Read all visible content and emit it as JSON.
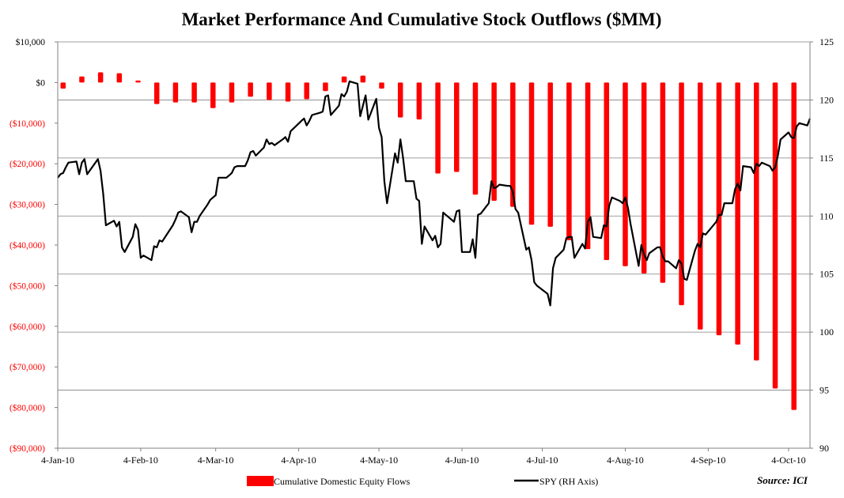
{
  "chart_data": {
    "type": "bar+line",
    "title": "Market Performance And Cumulative Stock Outflows ($MM)",
    "source": "Source: ICI",
    "left_axis": {
      "ylim": [
        -90000,
        10000
      ],
      "ticks": [
        10000,
        0,
        -10000,
        -20000,
        -30000,
        -40000,
        -50000,
        -60000,
        -70000,
        -80000,
        -90000
      ],
      "tick_labels": [
        "$10,000",
        "$0",
        "($10,000)",
        "($20,000)",
        "($30,000)",
        "($40,000)",
        "($50,000)",
        "($60,000)",
        "($70,000)",
        "($80,000)",
        "($90,000)"
      ],
      "positive_color": "#000000",
      "negative_color": "#ff0000"
    },
    "right_axis": {
      "ylim": [
        90,
        125
      ],
      "ticks": [
        125,
        120,
        115,
        110,
        105,
        100,
        95,
        90
      ],
      "tick_labels": [
        "125",
        "120",
        "115",
        "110",
        "105",
        "100",
        "95",
        "90"
      ]
    },
    "x_axis": {
      "start": "2010-01-04",
      "end": "2010-10-12",
      "ticks": [
        "2010-01-04",
        "2010-02-04",
        "2010-03-04",
        "2010-04-04",
        "2010-05-04",
        "2010-06-04",
        "2010-07-04",
        "2010-08-04",
        "2010-09-04",
        "2010-10-04"
      ],
      "tick_labels": [
        "4-Jan-10",
        "4-Feb-10",
        "4-Mar-10",
        "4-Apr-10",
        "4-May-10",
        "4-Jun-10",
        "4-Jul-10",
        "4-Aug-10",
        "4-Sep-10",
        "4-Oct-10"
      ]
    },
    "grid": true,
    "legend_position": "bottom",
    "series": [
      {
        "name": "Cumulative Domestic Equity Flows",
        "type": "bar",
        "axis": "left",
        "color": "#ff0000",
        "x": [
          "2010-01-06",
          "2010-01-13",
          "2010-01-20",
          "2010-01-27",
          "2010-02-03",
          "2010-02-10",
          "2010-02-17",
          "2010-02-24",
          "2010-03-03",
          "2010-03-10",
          "2010-03-17",
          "2010-03-24",
          "2010-03-31",
          "2010-04-07",
          "2010-04-14",
          "2010-04-21",
          "2010-04-28",
          "2010-05-05",
          "2010-05-12",
          "2010-05-19",
          "2010-05-26",
          "2010-06-02",
          "2010-06-09",
          "2010-06-16",
          "2010-06-23",
          "2010-06-30",
          "2010-07-07",
          "2010-07-14",
          "2010-07-21",
          "2010-07-28",
          "2010-08-04",
          "2010-08-11",
          "2010-08-18",
          "2010-08-25",
          "2010-09-01",
          "2010-09-08",
          "2010-09-15",
          "2010-09-22",
          "2010-09-29",
          "2010-10-06"
        ],
        "values": [
          -1500,
          1500,
          2500,
          2300,
          500,
          -5300,
          -4900,
          -4900,
          -6300,
          -4900,
          -3500,
          -4300,
          -4700,
          -4100,
          -2100,
          1500,
          1700,
          -1500,
          -8600,
          -9100,
          -22400,
          -22000,
          -27600,
          -29100,
          -30600,
          -35000,
          -35500,
          -38800,
          -41000,
          -43700,
          -45200,
          -47000,
          -49300,
          -54800,
          -60800,
          -62200,
          -64500,
          -68400,
          -75300,
          -80600
        ]
      },
      {
        "name": "SPY (RH Axis)",
        "type": "line",
        "axis": "right",
        "color": "#000000",
        "x": [
          "2010-01-04",
          "2010-01-05",
          "2010-01-06",
          "2010-01-07",
          "2010-01-08",
          "2010-01-11",
          "2010-01-12",
          "2010-01-13",
          "2010-01-14",
          "2010-01-15",
          "2010-01-19",
          "2010-01-20",
          "2010-01-21",
          "2010-01-22",
          "2010-01-25",
          "2010-01-26",
          "2010-01-27",
          "2010-01-28",
          "2010-01-29",
          "2010-02-01",
          "2010-02-02",
          "2010-02-03",
          "2010-02-04",
          "2010-02-05",
          "2010-02-08",
          "2010-02-09",
          "2010-02-10",
          "2010-02-11",
          "2010-02-12",
          "2010-02-16",
          "2010-02-17",
          "2010-02-18",
          "2010-02-19",
          "2010-02-22",
          "2010-02-23",
          "2010-02-24",
          "2010-02-25",
          "2010-02-26",
          "2010-03-01",
          "2010-03-02",
          "2010-03-03",
          "2010-03-04",
          "2010-03-05",
          "2010-03-08",
          "2010-03-09",
          "2010-03-10",
          "2010-03-11",
          "2010-03-12",
          "2010-03-15",
          "2010-03-16",
          "2010-03-17",
          "2010-03-18",
          "2010-03-19",
          "2010-03-22",
          "2010-03-23",
          "2010-03-24",
          "2010-03-25",
          "2010-03-26",
          "2010-03-29",
          "2010-03-30",
          "2010-03-31",
          "2010-04-01",
          "2010-04-05",
          "2010-04-06",
          "2010-04-07",
          "2010-04-08",
          "2010-04-09",
          "2010-04-12",
          "2010-04-13",
          "2010-04-14",
          "2010-04-15",
          "2010-04-16",
          "2010-04-19",
          "2010-04-20",
          "2010-04-21",
          "2010-04-22",
          "2010-04-23",
          "2010-04-26",
          "2010-04-27",
          "2010-04-28",
          "2010-04-29",
          "2010-04-30",
          "2010-05-03",
          "2010-05-04",
          "2010-05-05",
          "2010-05-06",
          "2010-05-07",
          "2010-05-10",
          "2010-05-11",
          "2010-05-12",
          "2010-05-13",
          "2010-05-14",
          "2010-05-17",
          "2010-05-18",
          "2010-05-19",
          "2010-05-20",
          "2010-05-21",
          "2010-05-24",
          "2010-05-25",
          "2010-05-26",
          "2010-05-27",
          "2010-05-28",
          "2010-06-01",
          "2010-06-02",
          "2010-06-03",
          "2010-06-04",
          "2010-06-07",
          "2010-06-08",
          "2010-06-09",
          "2010-06-10",
          "2010-06-11",
          "2010-06-14",
          "2010-06-15",
          "2010-06-16",
          "2010-06-17",
          "2010-06-18",
          "2010-06-21",
          "2010-06-22",
          "2010-06-23",
          "2010-06-24",
          "2010-06-25",
          "2010-06-28",
          "2010-06-29",
          "2010-06-30",
          "2010-07-01",
          "2010-07-02",
          "2010-07-06",
          "2010-07-07",
          "2010-07-08",
          "2010-07-09",
          "2010-07-12",
          "2010-07-13",
          "2010-07-14",
          "2010-07-15",
          "2010-07-16",
          "2010-07-19",
          "2010-07-20",
          "2010-07-21",
          "2010-07-22",
          "2010-07-23",
          "2010-07-26",
          "2010-07-27",
          "2010-07-28",
          "2010-07-29",
          "2010-07-30",
          "2010-08-02",
          "2010-08-03",
          "2010-08-04",
          "2010-08-05",
          "2010-08-06",
          "2010-08-09",
          "2010-08-10",
          "2010-08-11",
          "2010-08-12",
          "2010-08-13",
          "2010-08-16",
          "2010-08-17",
          "2010-08-18",
          "2010-08-19",
          "2010-08-20",
          "2010-08-23",
          "2010-08-24",
          "2010-08-25",
          "2010-08-26",
          "2010-08-27",
          "2010-08-30",
          "2010-08-31",
          "2010-09-01",
          "2010-09-02",
          "2010-09-03",
          "2010-09-07",
          "2010-09-08",
          "2010-09-09",
          "2010-09-10",
          "2010-09-13",
          "2010-09-14",
          "2010-09-15",
          "2010-09-16",
          "2010-09-17",
          "2010-09-20",
          "2010-09-21",
          "2010-09-22",
          "2010-09-23",
          "2010-09-24",
          "2010-09-27",
          "2010-09-28",
          "2010-09-29",
          "2010-09-30",
          "2010-10-01",
          "2010-10-04",
          "2010-10-05",
          "2010-10-06",
          "2010-10-07",
          "2010-10-08",
          "2010-10-11",
          "2010-10-12"
        ],
        "values": [
          113.3,
          113.6,
          113.7,
          114.2,
          114.6,
          114.7,
          113.6,
          114.6,
          114.9,
          113.6,
          114.9,
          113.9,
          111.9,
          109.2,
          109.6,
          109.1,
          109.5,
          107.3,
          106.9,
          108.2,
          109.3,
          108.8,
          106.4,
          106.6,
          106.2,
          107.4,
          107.3,
          107.9,
          107.8,
          109.2,
          109.7,
          110.3,
          110.4,
          109.9,
          108.6,
          109.5,
          109.5,
          110.0,
          111.0,
          111.4,
          111.6,
          111.8,
          113.3,
          113.3,
          113.5,
          113.7,
          114.2,
          114.3,
          114.3,
          114.8,
          115.5,
          115.6,
          115.2,
          115.9,
          116.6,
          116.2,
          116.3,
          116.1,
          116.6,
          116.8,
          116.4,
          117.3,
          118.2,
          118.4,
          117.8,
          118.2,
          118.7,
          118.9,
          119.0,
          120.3,
          120.4,
          118.7,
          119.5,
          120.5,
          120.3,
          120.7,
          121.6,
          121.4,
          118.6,
          119.5,
          120.4,
          118.3,
          120.1,
          117.6,
          116.8,
          113.0,
          111.1,
          115.4,
          114.6,
          116.6,
          115.0,
          113.0,
          113.0,
          111.5,
          111.3,
          107.6,
          109.1,
          107.9,
          108.3,
          107.3,
          107.6,
          110.3,
          109.5,
          110.4,
          110.5,
          106.9,
          106.9,
          108.0,
          106.4,
          110.1,
          110.2,
          111.1,
          113.0,
          112.4,
          112.5,
          112.7,
          112.6,
          112.6,
          112.1,
          110.6,
          110.3,
          107.1,
          107.3,
          106.2,
          104.3,
          104.0,
          103.3,
          102.3,
          105.5,
          106.4,
          107.1,
          108.1,
          108.2,
          108.2,
          106.4,
          107.6,
          107.2,
          109.5,
          109.9,
          108.2,
          108.1,
          109.2,
          109.1,
          110.9,
          111.6,
          111.3,
          111.1,
          111.6,
          110.7,
          109.3,
          105.7,
          107.5,
          106.7,
          106.2,
          106.8,
          107.3,
          107.3,
          106.5,
          106.1,
          106.1,
          105.5,
          106.2,
          105.9,
          104.6,
          104.5,
          107.0,
          107.6,
          107.3,
          108.5,
          108.4,
          109.5,
          110.1,
          110.1,
          111.1,
          111.1,
          112.3,
          112.8,
          112.2,
          114.3,
          114.2,
          113.7,
          114.5,
          114.3,
          114.6,
          114.3,
          113.9,
          114.2,
          115.2,
          116.6,
          117.2,
          116.8,
          116.7,
          117.7,
          118.0,
          117.8,
          118.4
        ]
      }
    ]
  }
}
